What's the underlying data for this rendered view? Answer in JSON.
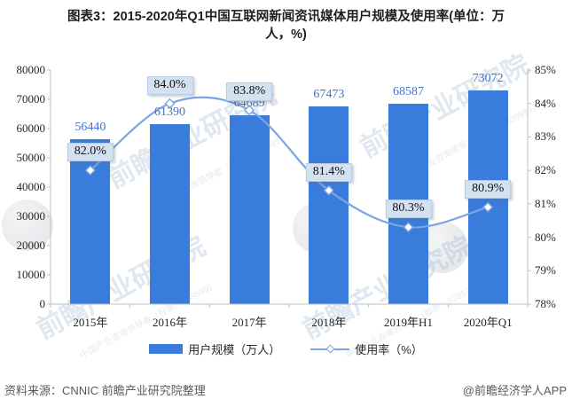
{
  "title": {
    "lines": [
      "图表3：2015-2020年Q1中国互联网新闻资讯媒体用户规模及使用率(单位：万",
      "人，%)"
    ]
  },
  "chart_data": {
    "type": "bar+line",
    "categories": [
      "2015年",
      "2016年",
      "2017年",
      "2018年",
      "2019年H1",
      "2020年Q1"
    ],
    "series": [
      {
        "name": "用户规模（万人）",
        "type": "bar",
        "axis": "left",
        "values": [
          56440,
          61390,
          64689,
          67473,
          68587,
          73072
        ],
        "labels": [
          "56440",
          "61390",
          "64689",
          "67473",
          "68587",
          "73072"
        ]
      },
      {
        "name": "使用率（%）",
        "type": "line",
        "axis": "right",
        "values": [
          82.0,
          84.0,
          83.8,
          81.4,
          80.3,
          80.9
        ],
        "labels": [
          "82.0%",
          "84.0%",
          "83.8%",
          "81.4%",
          "80.3%",
          "80.9%"
        ]
      }
    ],
    "left_axis": {
      "min": 0,
      "max": 80000,
      "step": 10000,
      "tick_labels": [
        "0",
        "10000",
        "20000",
        "30000",
        "40000",
        "50000",
        "60000",
        "70000",
        "80000"
      ]
    },
    "right_axis": {
      "min": 78,
      "max": 85,
      "step": 1,
      "tick_labels": [
        "78%",
        "79%",
        "80%",
        "81%",
        "82%",
        "83%",
        "84%",
        "85%"
      ]
    },
    "legend_position": "bottom",
    "grid": false
  },
  "footer": {
    "source": "资料来源：CNNIC  前瞻产业研究院整理",
    "credit": "@前瞻经济学人APP"
  },
  "watermark": {
    "text": "前瞻产业研究院",
    "subtext": "中国产业咨询领导者（股票：839599）"
  },
  "colors": {
    "bar": "#3a7cdb",
    "line": "#7ca5e2",
    "value_label": "#4273c8",
    "pct_box_bg": "#d4e1f1",
    "axis": "#bfbfbf",
    "text": "#262626"
  }
}
